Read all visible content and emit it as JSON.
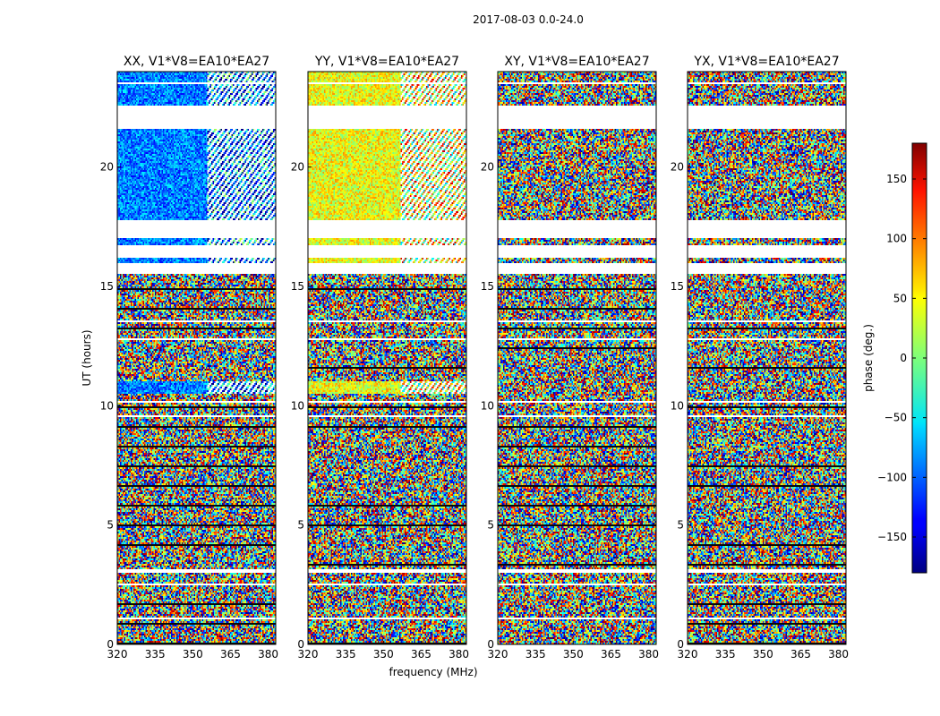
{
  "figure": {
    "suptitle": "2017-08-03 0.0-24.0",
    "xlabel": "frequency (MHz)",
    "ylabel": "UT (hours)"
  },
  "chart_data": {
    "type": "heatmap",
    "colormap": "jet",
    "x_ticks": [
      320,
      335,
      350,
      365,
      380
    ],
    "y_ticks": [
      0,
      5,
      10,
      15,
      20
    ],
    "xlim": [
      320,
      383
    ],
    "ylim": [
      0,
      24
    ],
    "panels": [
      {
        "title": "XX, V1*V8=EA10*EA27",
        "bias": -90,
        "spread": 0.25,
        "texture_boundary": 356
      },
      {
        "title": "YY, V1*V8=EA10*EA27",
        "bias": 40,
        "spread": 0.25,
        "texture_boundary": 357
      },
      {
        "title": "XY, V1*V8=EA10*EA27",
        "bias": 0,
        "spread": 1.0,
        "texture_boundary": null
      },
      {
        "title": "YX, V1*V8=EA10*EA27",
        "bias": 0,
        "spread": 1.0,
        "texture_boundary": null
      }
    ],
    "noisy_time_ranges": [
      [
        0,
        10.5
      ],
      [
        11.0,
        15.5
      ]
    ],
    "blank_time_ranges": [
      [
        21.6,
        22.6
      ],
      [
        17.0,
        17.8
      ],
      [
        16.2,
        16.7
      ],
      [
        15.5,
        16.0
      ],
      [
        10.1,
        10.2
      ],
      [
        3.0,
        3.05
      ],
      [
        3.5,
        3.55
      ]
    ],
    "colorbar": {
      "label": "phase (deg.)",
      "range": [
        -180,
        180
      ],
      "ticks": [
        -150,
        -100,
        -50,
        0,
        50,
        100,
        150
      ],
      "tick_labels": [
        "−150",
        "−100",
        "−50",
        "0",
        "50",
        "100",
        "150"
      ]
    }
  }
}
